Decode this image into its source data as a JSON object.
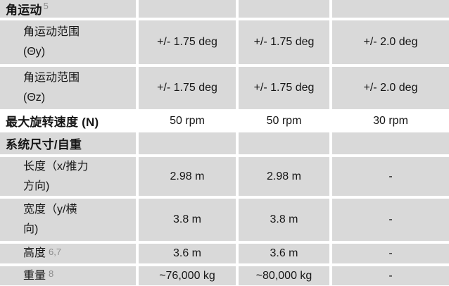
{
  "table": {
    "rows": [
      {
        "label": "角运动",
        "sup": "5",
        "values": [
          "",
          "",
          ""
        ]
      },
      {
        "label": "角运动范围\n(Θy)",
        "values": [
          "+/- 1.75 deg",
          "+/- 1.75 deg",
          "+/- 2.0 deg"
        ]
      },
      {
        "label": "角运动范围\n(Θz)",
        "values": [
          "+/- 1.75 deg",
          "+/- 1.75 deg",
          "+/- 2.0 deg"
        ]
      },
      {
        "label": "最大旋转速度 (N)",
        "values": [
          "50 rpm",
          "50 rpm",
          "30 rpm"
        ]
      },
      {
        "label": "系统尺寸/自重",
        "values": [
          "",
          "",
          ""
        ]
      },
      {
        "label": "长度（x/推力\n方向)",
        "values": [
          "2.98 m",
          "2.98 m",
          "-"
        ]
      },
      {
        "label": "宽度（y/横\n向)",
        "values": [
          "3.8 m",
          "3.8 m",
          "-"
        ]
      },
      {
        "label": "高度",
        "sup": "6,7",
        "values": [
          "3.6 m",
          "3.6 m",
          "-"
        ]
      },
      {
        "label": "重量",
        "sup": "8",
        "values": [
          "~76,000 kg",
          "~80,000 kg",
          "-"
        ]
      }
    ],
    "colors": {
      "cell_bg": "#d9d9d9",
      "white_row_bg": "#ffffff",
      "text": "#161616",
      "footnote": "#8c8c8c"
    }
  }
}
